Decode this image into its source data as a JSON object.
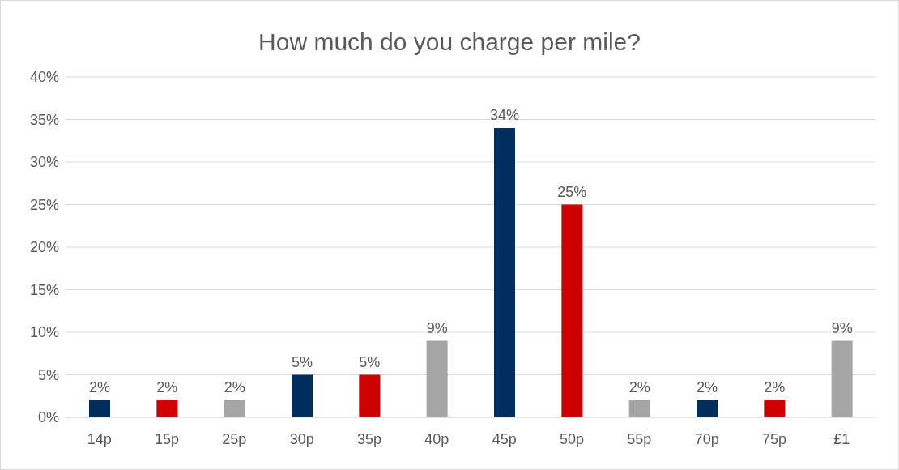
{
  "chart_data": {
    "type": "bar",
    "title": "How much do you charge per mile?",
    "categories": [
      "14p",
      "15p",
      "25p",
      "30p",
      "35p",
      "40p",
      "45p",
      "50p",
      "55p",
      "70p",
      "75p",
      "£1"
    ],
    "values": [
      2,
      2,
      2,
      5,
      5,
      9,
      34,
      25,
      2,
      2,
      2,
      9
    ],
    "colors": [
      "#002f5f",
      "#d00000",
      "#a5a5a5",
      "#002f5f",
      "#d00000",
      "#a5a5a5",
      "#002f5f",
      "#d00000",
      "#a5a5a5",
      "#002f5f",
      "#d00000",
      "#a5a5a5"
    ],
    "value_labels": [
      "2%",
      "2%",
      "2%",
      "5%",
      "5%",
      "9%",
      "34%",
      "25%",
      "2%",
      "2%",
      "2%",
      "9%"
    ],
    "ylim": [
      0,
      40
    ],
    "yticks": [
      {
        "value": 0,
        "label": "0%"
      },
      {
        "value": 5,
        "label": "5%"
      },
      {
        "value": 10,
        "label": "10%"
      },
      {
        "value": 15,
        "label": "15%"
      },
      {
        "value": 20,
        "label": "20%"
      },
      {
        "value": 25,
        "label": "25%"
      },
      {
        "value": 30,
        "label": "30%"
      },
      {
        "value": 35,
        "label": "35%"
      },
      {
        "value": 40,
        "label": "40%"
      }
    ],
    "grid": "y",
    "legend": false
  }
}
